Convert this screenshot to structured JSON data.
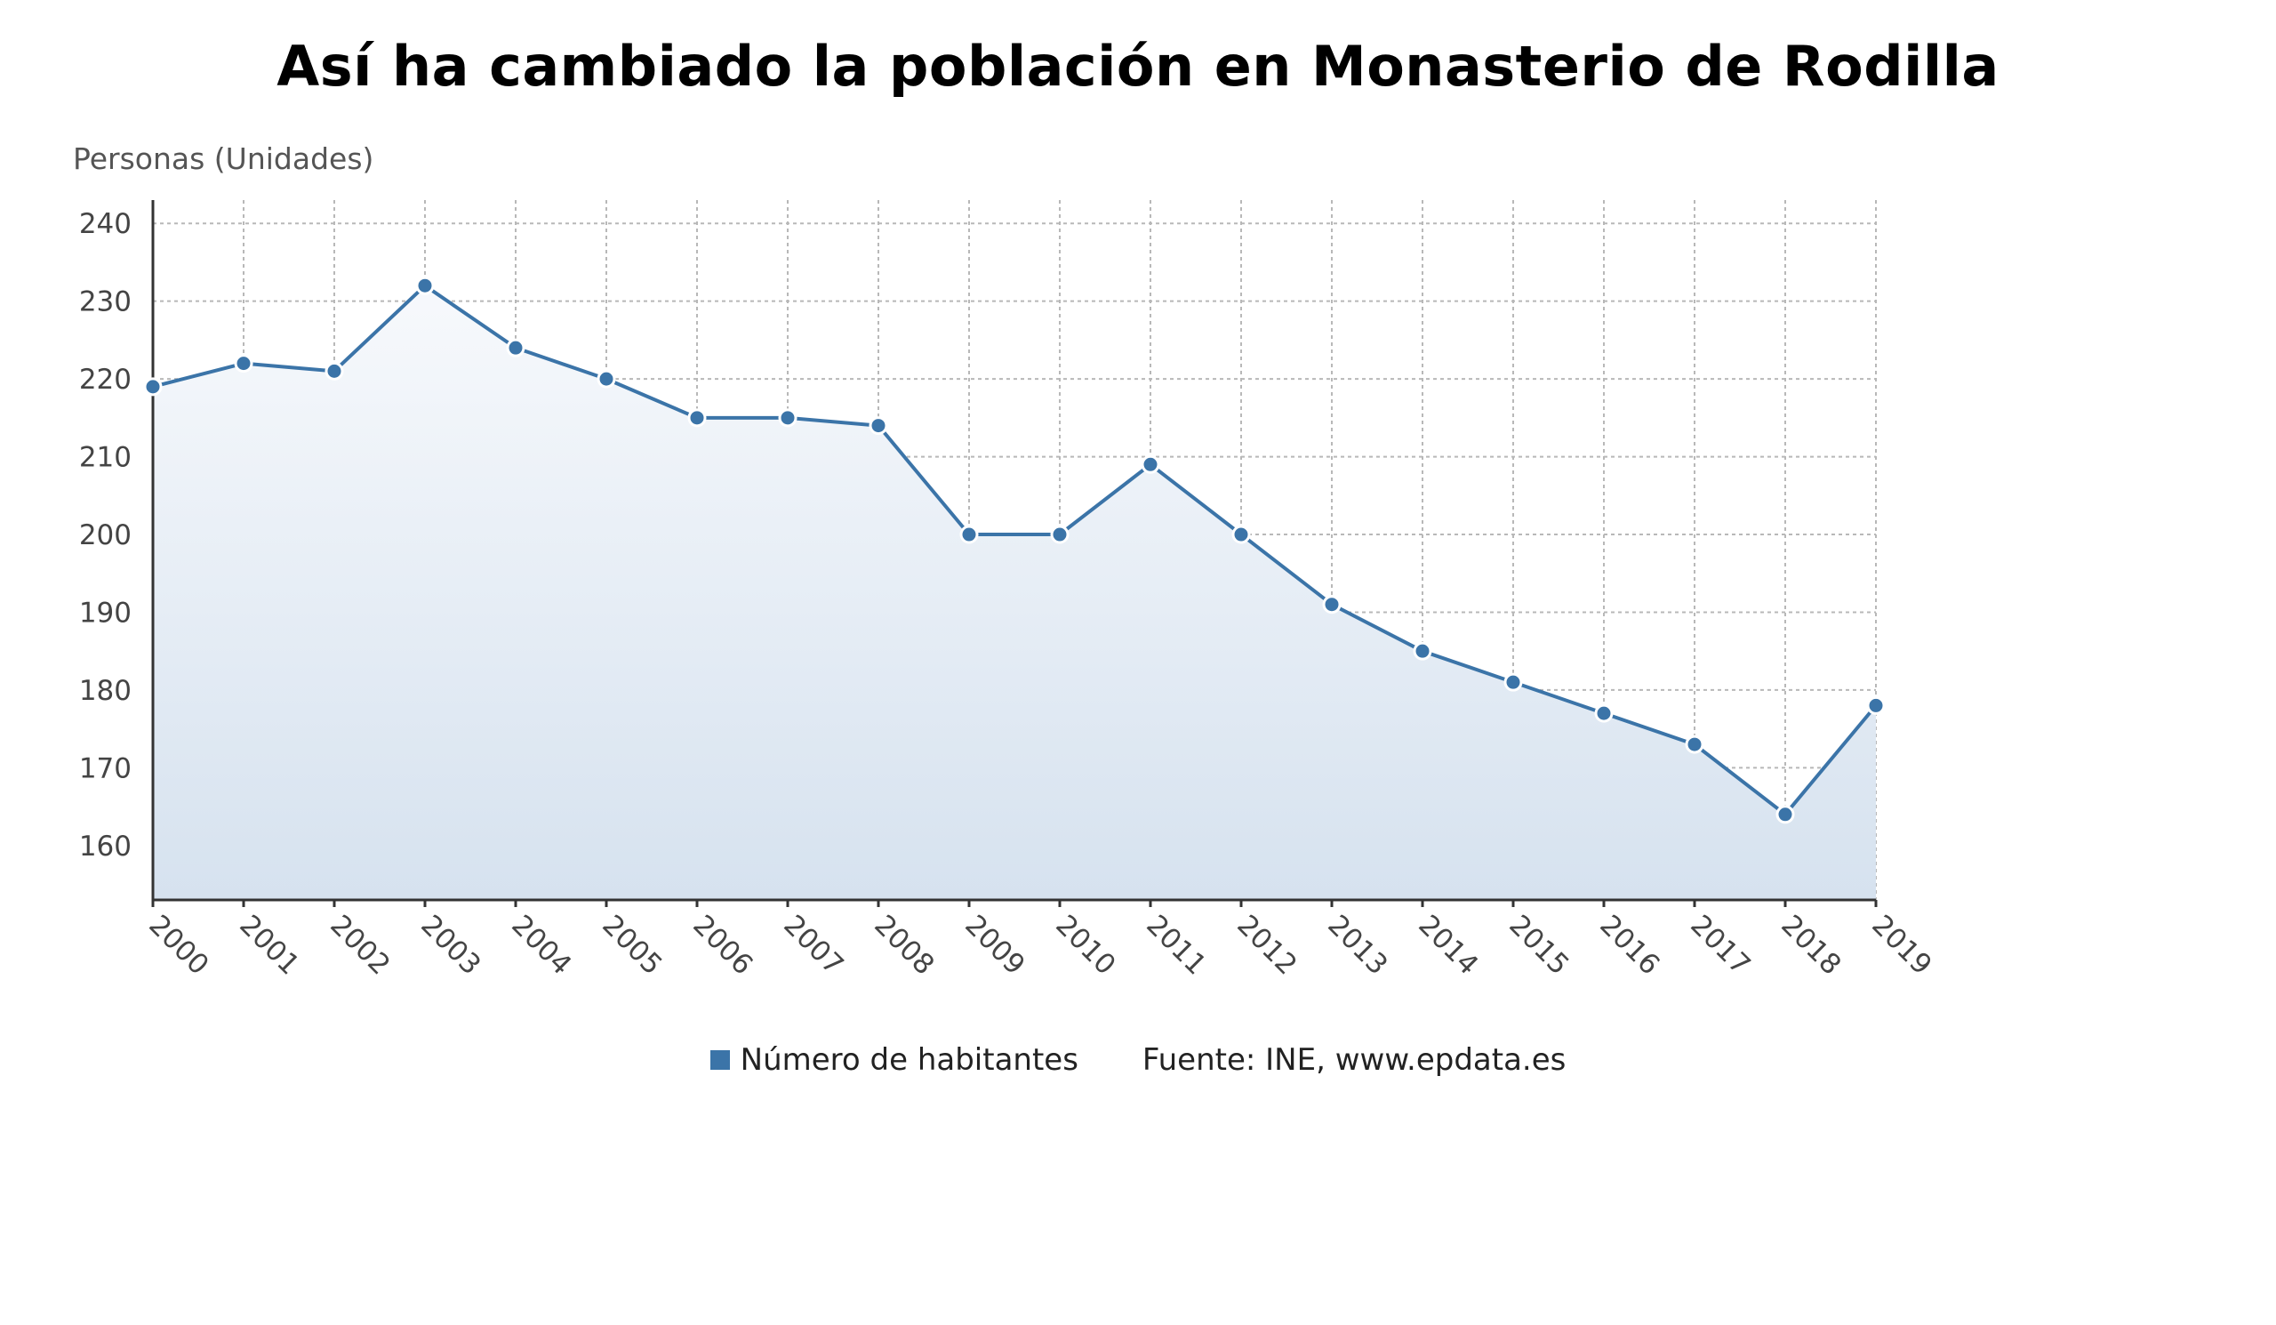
{
  "chart_data": {
    "type": "area",
    "title": "Así ha cambiado la población en Monasterio de Rodilla",
    "ylabel": "Personas (Unidades)",
    "xlabel": "",
    "categories": [
      "2000",
      "2001",
      "2002",
      "2003",
      "2004",
      "2005",
      "2006",
      "2007",
      "2008",
      "2009",
      "2010",
      "2011",
      "2012",
      "2013",
      "2014",
      "2015",
      "2016",
      "2017",
      "2018",
      "2019"
    ],
    "series": [
      {
        "name": "Número de habitantes",
        "values": [
          219,
          222,
          221,
          232,
          224,
          220,
          215,
          215,
          214,
          200,
          200,
          209,
          200,
          191,
          185,
          181,
          177,
          173,
          164,
          178
        ]
      }
    ],
    "ylim": [
      153,
      243
    ],
    "yticks": [
      160,
      170,
      180,
      190,
      200,
      210,
      220,
      230,
      240
    ],
    "grid": true,
    "legend_position": "bottom",
    "source": "Fuente: INE, www.epdata.es",
    "colors": {
      "line": "#3b74a8",
      "fill_top": "#f7f9fc",
      "fill_bottom": "#d6e2ef",
      "grid": "#b8b8b8",
      "axis": "#333333"
    }
  }
}
